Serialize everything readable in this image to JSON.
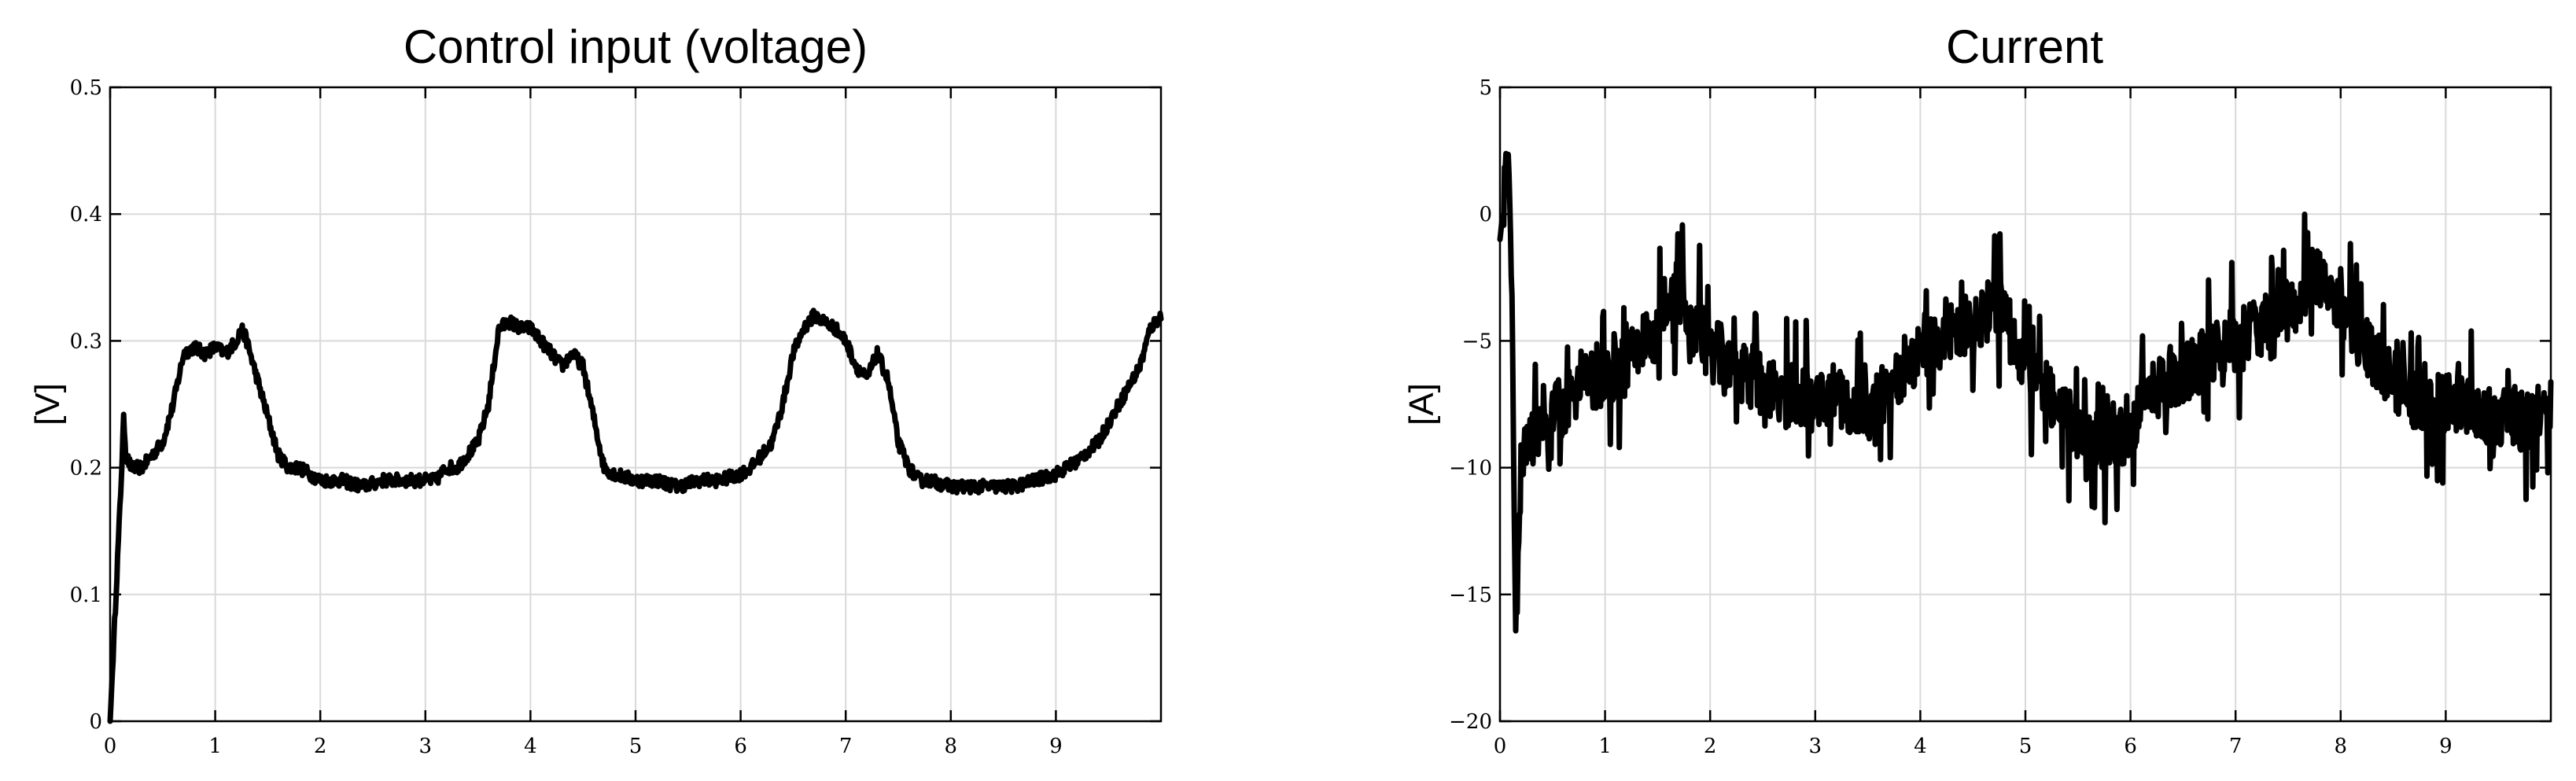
{
  "chart_data": [
    {
      "type": "line",
      "title": "Control input (voltage)",
      "xlabel": "",
      "ylabel": "[V]",
      "xlim": [
        0,
        10
      ],
      "ylim": [
        0,
        0.5
      ],
      "xticks": [
        "0",
        "1",
        "2",
        "3",
        "4",
        "5",
        "6",
        "7",
        "8",
        "9"
      ],
      "yticks": [
        "0",
        "0.1",
        "0.2",
        "0.3",
        "0.4",
        "0.5"
      ],
      "grid": true,
      "series": [
        {
          "color": "#000000",
          "noise": 0.01,
          "x": [
            0,
            0.1,
            0.13,
            0.15,
            0.2,
            0.3,
            0.4,
            0.5,
            0.6,
            0.7,
            0.8,
            0.9,
            1.0,
            1.1,
            1.2,
            1.25,
            1.3,
            1.4,
            1.5,
            1.6,
            1.7,
            1.8,
            2.0,
            2.2,
            2.4,
            2.6,
            2.8,
            3.0,
            3.1,
            3.2,
            3.3,
            3.4,
            3.5,
            3.6,
            3.65,
            3.7,
            3.8,
            3.9,
            4.0,
            4.1,
            4.2,
            4.3,
            4.4,
            4.5,
            4.6,
            4.7,
            4.8,
            5.0,
            5.2,
            5.4,
            5.6,
            5.8,
            6.0,
            6.1,
            6.2,
            6.3,
            6.4,
            6.5,
            6.6,
            6.7,
            6.8,
            6.9,
            7.0,
            7.1,
            7.2,
            7.3,
            7.4,
            7.5,
            7.6,
            7.7,
            7.8,
            8.0,
            8.2,
            8.4,
            8.6,
            8.8,
            9.0,
            9.2,
            9.4,
            9.6,
            9.8,
            9.9,
            10.0
          ],
          "y": [
            0,
            0.18,
            0.24,
            0.21,
            0.2,
            0.2,
            0.21,
            0.22,
            0.25,
            0.29,
            0.295,
            0.29,
            0.295,
            0.29,
            0.3,
            0.31,
            0.3,
            0.27,
            0.24,
            0.21,
            0.2,
            0.2,
            0.19,
            0.19,
            0.185,
            0.19,
            0.19,
            0.19,
            0.19,
            0.2,
            0.2,
            0.21,
            0.22,
            0.25,
            0.28,
            0.31,
            0.315,
            0.31,
            0.31,
            0.3,
            0.29,
            0.28,
            0.29,
            0.28,
            0.24,
            0.2,
            0.195,
            0.19,
            0.19,
            0.185,
            0.19,
            0.19,
            0.195,
            0.2,
            0.21,
            0.22,
            0.25,
            0.29,
            0.31,
            0.32,
            0.315,
            0.31,
            0.3,
            0.28,
            0.27,
            0.29,
            0.27,
            0.22,
            0.2,
            0.19,
            0.19,
            0.185,
            0.185,
            0.185,
            0.185,
            0.19,
            0.195,
            0.205,
            0.22,
            0.25,
            0.28,
            0.31,
            0.32
          ]
        }
      ]
    },
    {
      "type": "line",
      "title": "Current",
      "xlabel": "",
      "ylabel": "[A]",
      "xlim": [
        0,
        10
      ],
      "ylim": [
        -20,
        5
      ],
      "xticks": [
        "0",
        "1",
        "2",
        "3",
        "4",
        "5",
        "6",
        "7",
        "8",
        "9"
      ],
      "yticks": [
        "−20",
        "−15",
        "−10",
        "−5",
        "0",
        "5"
      ],
      "grid": true,
      "series": [
        {
          "color": "#000000",
          "noise": 3,
          "x": [
            0,
            0.05,
            0.08,
            0.1,
            0.13,
            0.15,
            0.18,
            0.2,
            0.25,
            0.3,
            0.4,
            0.5,
            0.6,
            0.7,
            0.8,
            0.9,
            1.0,
            1.1,
            1.2,
            1.3,
            1.4,
            1.5,
            1.6,
            1.7,
            1.8,
            1.9,
            2.0,
            2.2,
            2.4,
            2.6,
            2.8,
            3.0,
            3.2,
            3.4,
            3.6,
            3.8,
            4.0,
            4.2,
            4.4,
            4.6,
            4.7,
            4.8,
            4.9,
            5.0,
            5.2,
            5.4,
            5.6,
            5.8,
            6.0,
            6.2,
            6.4,
            6.6,
            6.8,
            7.0,
            7.2,
            7.4,
            7.6,
            7.7,
            7.8,
            7.9,
            8.0,
            8.2,
            8.4,
            8.6,
            8.8,
            9.0,
            9.2,
            9.4,
            9.6,
            9.8,
            10.0
          ],
          "y": [
            -1,
            1,
            2,
            0,
            -8,
            -17,
            -12,
            -10,
            -9,
            -9,
            -8.5,
            -8,
            -7.5,
            -7,
            -6.5,
            -6.5,
            -6.5,
            -6,
            -6,
            -5.5,
            -5,
            -4.5,
            -3,
            -3,
            -4,
            -4.5,
            -5,
            -6,
            -6.5,
            -7,
            -7,
            -7.5,
            -7,
            -8,
            -7.5,
            -6.5,
            -5.5,
            -5,
            -4.5,
            -4,
            -3.5,
            -4,
            -5,
            -6,
            -7,
            -8,
            -9,
            -9,
            -8.5,
            -7,
            -6.5,
            -6,
            -5.5,
            -5,
            -4.5,
            -4,
            -3.5,
            -2.5,
            -2.5,
            -3,
            -4,
            -5,
            -6,
            -7,
            -7.5,
            -7.5,
            -7.5,
            -8,
            -8,
            -8,
            -7.5
          ]
        }
      ]
    }
  ]
}
